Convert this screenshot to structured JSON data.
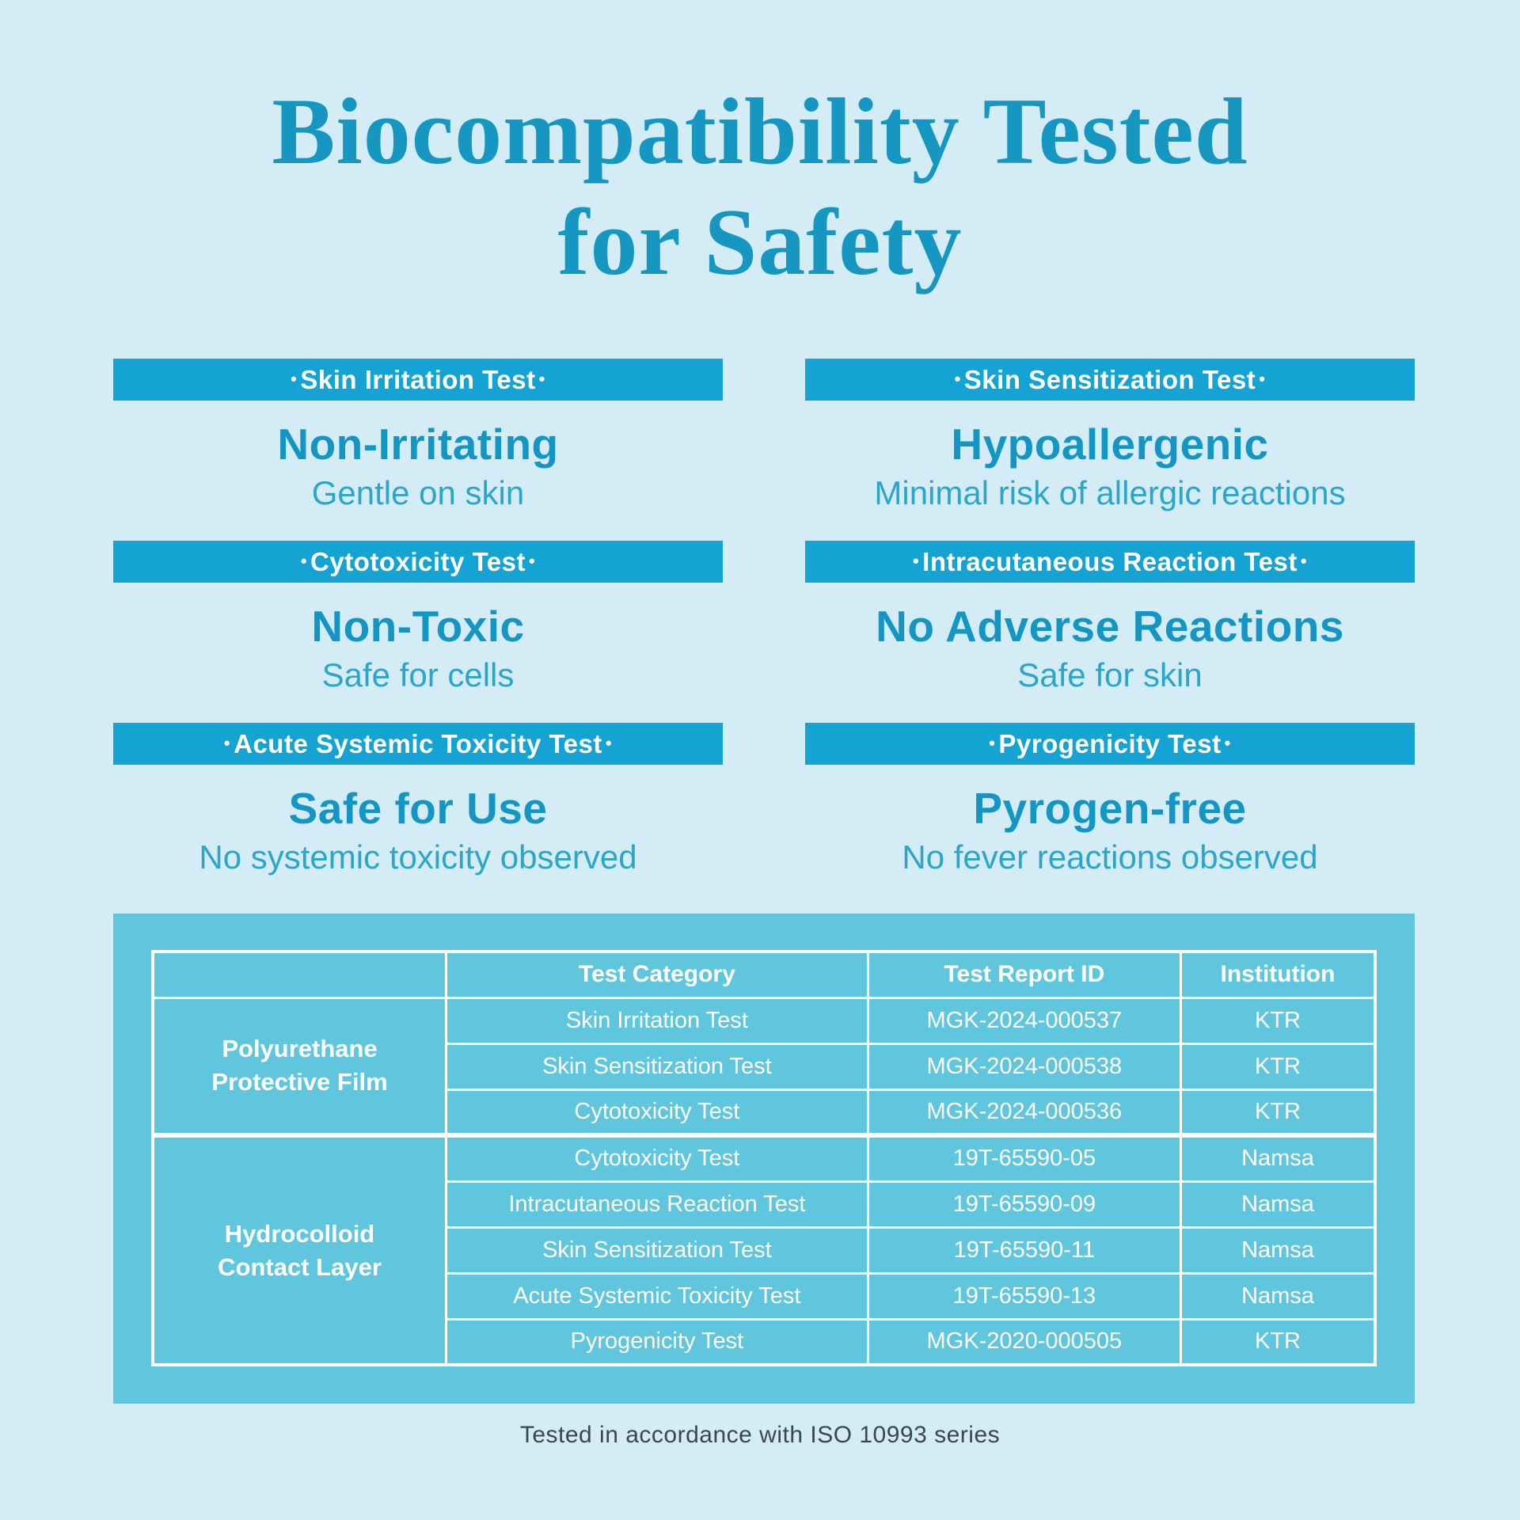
{
  "ui": {
    "dot": "•"
  },
  "theme": {
    "background": "#d3ecf6",
    "banner_teal": "#14a3d2",
    "heading_teal": "#1496c4",
    "subtitle_teal": "#2ba6c8",
    "panel_teal": "#60c6dd",
    "table_text": "#ffffff",
    "footer_gray": "#3c4650"
  },
  "title": {
    "line1": "Biocompatibility Tested",
    "line2": "for Safety"
  },
  "sections": [
    {
      "banner": "Skin Irritation Test",
      "result": "Non-Irritating",
      "description": "Gentle on skin"
    },
    {
      "banner": "Skin Sensitization Test",
      "result": "Hypoallergenic",
      "description": "Minimal risk of allergic reactions"
    },
    {
      "banner": "Cytotoxicity Test",
      "result": "Non-Toxic",
      "description": "Safe for cells"
    },
    {
      "banner": "Intracutaneous Reaction Test",
      "result": "No Adverse Reactions",
      "description": "Safe for skin"
    },
    {
      "banner": "Acute Systemic Toxicity Test",
      "result": "Safe for Use",
      "description": "No systemic toxicity observed"
    },
    {
      "banner": "Pyrogenicity Test",
      "result": "Pyrogen-free",
      "description": "No fever reactions observed"
    }
  ],
  "table": {
    "headers": {
      "category": "Test Category",
      "report_id": "Test Report ID",
      "institution": "Institution"
    },
    "groups": [
      {
        "material_lines": [
          "Polyurethane",
          "Protective Film"
        ],
        "rows": [
          {
            "category": "Skin Irritation Test",
            "report_id": "MGK-2024-000537",
            "institution": "KTR"
          },
          {
            "category": "Skin Sensitization Test",
            "report_id": "MGK-2024-000538",
            "institution": "KTR"
          },
          {
            "category": "Cytotoxicity Test",
            "report_id": "MGK-2024-000536",
            "institution": "KTR"
          }
        ]
      },
      {
        "material_lines": [
          "Hydrocolloid",
          "Contact Layer"
        ],
        "rows": [
          {
            "category": "Cytotoxicity Test",
            "report_id": "19T-65590-05",
            "institution": "Namsa"
          },
          {
            "category": "Intracutaneous Reaction Test",
            "report_id": "19T-65590-09",
            "institution": "Namsa"
          },
          {
            "category": "Skin Sensitization Test",
            "report_id": "19T-65590-11",
            "institution": "Namsa"
          },
          {
            "category": "Acute Systemic Toxicity Test",
            "report_id": "19T-65590-13",
            "institution": "Namsa"
          },
          {
            "category": "Pyrogenicity Test",
            "report_id": "MGK-2020-000505",
            "institution": "KTR"
          }
        ]
      }
    ]
  },
  "footer": {
    "note": "Tested in accordance with ISO 10993 series"
  }
}
